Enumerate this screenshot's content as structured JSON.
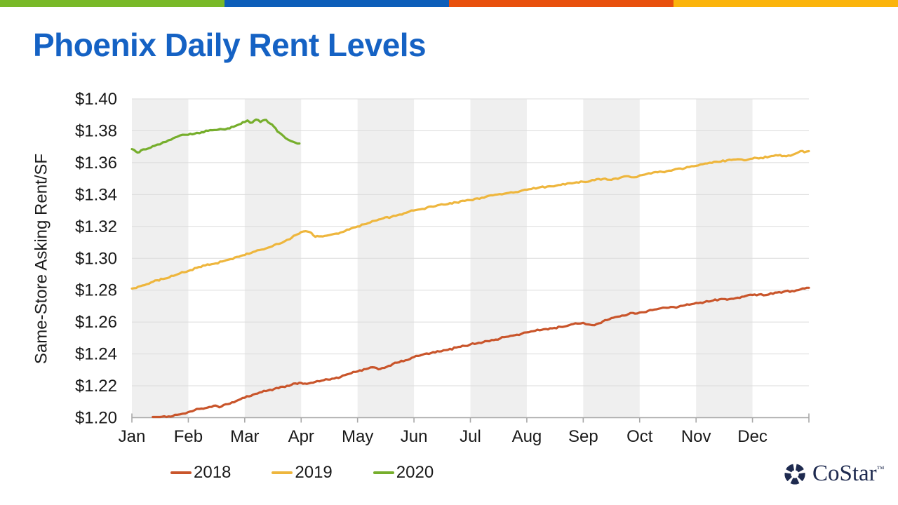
{
  "title": {
    "text": "Phoenix Daily Rent Levels",
    "color": "#1562C4"
  },
  "top_bar": {
    "segment_colors": [
      "#79B928",
      "#0D5EB9",
      "#E8500D",
      "#FBB40B"
    ],
    "segment_names": [
      "green",
      "blue",
      "orange",
      "yellow"
    ]
  },
  "chart_data": {
    "type": "line",
    "title": "",
    "xlabel": "",
    "ylabel": "Same-Store Asking Rent/SF",
    "ylim": [
      1.2,
      1.4
    ],
    "y_ticks": [
      {
        "value": 1.2,
        "label": "$1.20"
      },
      {
        "value": 1.22,
        "label": "$1.22"
      },
      {
        "value": 1.24,
        "label": "$1.24"
      },
      {
        "value": 1.26,
        "label": "$1.26"
      },
      {
        "value": 1.28,
        "label": "$1.28"
      },
      {
        "value": 1.3,
        "label": "$1.30"
      },
      {
        "value": 1.32,
        "label": "$1.32"
      },
      {
        "value": 1.34,
        "label": "$1.34"
      },
      {
        "value": 1.36,
        "label": "$1.36"
      },
      {
        "value": 1.38,
        "label": "$1.38"
      },
      {
        "value": 1.4,
        "label": "$1.40"
      }
    ],
    "x_ticks": [
      "Jan",
      "Feb",
      "Mar",
      "Apr",
      "May",
      "Jun",
      "Jul",
      "Aug",
      "Sep",
      "Oct",
      "Nov",
      "Dec"
    ],
    "x_encoding": "months elapsed since Jan 1 (0 = Jan 1, 12 = Dec 31)",
    "xlim": [
      0,
      12
    ],
    "grid": "horizontal",
    "shaded_month_bands": [
      "Jan",
      "Mar",
      "May",
      "Jul",
      "Sep",
      "Nov"
    ],
    "legend_position": "bottom-left",
    "noise_amplitude": 0.0005,
    "series": [
      {
        "name": "2018",
        "color": "#C9552B",
        "points": [
          [
            0.37,
            1.1995
          ],
          [
            0.5,
            1.2
          ],
          [
            0.65,
            1.2008
          ],
          [
            0.8,
            1.2018
          ],
          [
            0.9,
            1.2025
          ],
          [
            1.0,
            1.2035
          ],
          [
            1.1,
            1.2045
          ],
          [
            1.2,
            1.2055
          ],
          [
            1.3,
            1.206
          ],
          [
            1.45,
            1.2075
          ],
          [
            1.55,
            1.2065
          ],
          [
            1.7,
            1.2085
          ],
          [
            1.85,
            1.2105
          ],
          [
            2.0,
            1.2125
          ],
          [
            2.15,
            1.2145
          ],
          [
            2.3,
            1.216
          ],
          [
            2.45,
            1.2175
          ],
          [
            2.6,
            1.2185
          ],
          [
            2.75,
            1.22
          ],
          [
            2.9,
            1.2215
          ],
          [
            3.0,
            1.2218
          ],
          [
            3.1,
            1.2212
          ],
          [
            3.25,
            1.2225
          ],
          [
            3.4,
            1.2235
          ],
          [
            3.55,
            1.2245
          ],
          [
            3.7,
            1.2255
          ],
          [
            3.85,
            1.2275
          ],
          [
            4.0,
            1.229
          ],
          [
            4.15,
            1.2305
          ],
          [
            4.3,
            1.2315
          ],
          [
            4.4,
            1.2305
          ],
          [
            4.55,
            1.2325
          ],
          [
            4.7,
            1.2345
          ],
          [
            4.85,
            1.236
          ],
          [
            5.0,
            1.238
          ],
          [
            5.15,
            1.2395
          ],
          [
            5.3,
            1.2405
          ],
          [
            5.45,
            1.2415
          ],
          [
            5.6,
            1.2425
          ],
          [
            5.75,
            1.244
          ],
          [
            5.9,
            1.245
          ],
          [
            6.0,
            1.246
          ],
          [
            6.15,
            1.247
          ],
          [
            6.3,
            1.248
          ],
          [
            6.45,
            1.249
          ],
          [
            6.6,
            1.2505
          ],
          [
            6.75,
            1.2515
          ],
          [
            6.9,
            1.2525
          ],
          [
            7.0,
            1.2535
          ],
          [
            7.15,
            1.2545
          ],
          [
            7.3,
            1.2555
          ],
          [
            7.45,
            1.256
          ],
          [
            7.6,
            1.257
          ],
          [
            7.75,
            1.258
          ],
          [
            7.9,
            1.259
          ],
          [
            8.0,
            1.2595
          ],
          [
            8.1,
            1.2585
          ],
          [
            8.2,
            1.258
          ],
          [
            8.35,
            1.2605
          ],
          [
            8.5,
            1.2625
          ],
          [
            8.65,
            1.2635
          ],
          [
            8.8,
            1.265
          ],
          [
            9.0,
            1.266
          ],
          [
            9.15,
            1.267
          ],
          [
            9.3,
            1.268
          ],
          [
            9.45,
            1.269
          ],
          [
            9.55,
            1.2695
          ],
          [
            9.65,
            1.269
          ],
          [
            9.8,
            1.2705
          ],
          [
            10.0,
            1.272
          ],
          [
            10.15,
            1.2725
          ],
          [
            10.3,
            1.2735
          ],
          [
            10.45,
            1.2745
          ],
          [
            10.55,
            1.274
          ],
          [
            10.7,
            1.275
          ],
          [
            10.85,
            1.276
          ],
          [
            11.0,
            1.277
          ],
          [
            11.15,
            1.2775
          ],
          [
            11.25,
            1.277
          ],
          [
            11.4,
            1.2785
          ],
          [
            11.55,
            1.279
          ],
          [
            11.7,
            1.2795
          ],
          [
            11.85,
            1.2805
          ],
          [
            12.0,
            1.2815
          ]
        ]
      },
      {
        "name": "2019",
        "color": "#EEB63D",
        "points": [
          [
            0,
            1.281
          ],
          [
            0.15,
            1.2825
          ],
          [
            0.3,
            1.284
          ],
          [
            0.45,
            1.2862
          ],
          [
            0.55,
            1.287
          ],
          [
            0.7,
            1.289
          ],
          [
            0.85,
            1.2905
          ],
          [
            1.0,
            1.292
          ],
          [
            1.15,
            1.294
          ],
          [
            1.3,
            1.2955
          ],
          [
            1.45,
            1.2965
          ],
          [
            1.6,
            1.298
          ],
          [
            1.75,
            1.2995
          ],
          [
            1.9,
            1.301
          ],
          [
            2.0,
            1.302
          ],
          [
            2.15,
            1.304
          ],
          [
            2.3,
            1.3055
          ],
          [
            2.45,
            1.307
          ],
          [
            2.6,
            1.309
          ],
          [
            2.7,
            1.3105
          ],
          [
            2.8,
            1.312
          ],
          [
            2.9,
            1.3145
          ],
          [
            3.0,
            1.3165
          ],
          [
            3.08,
            1.317
          ],
          [
            3.15,
            1.3165
          ],
          [
            3.25,
            1.3135
          ],
          [
            3.35,
            1.3138
          ],
          [
            3.45,
            1.3142
          ],
          [
            3.55,
            1.315
          ],
          [
            3.7,
            1.3162
          ],
          [
            3.85,
            1.318
          ],
          [
            4.0,
            1.32
          ],
          [
            4.15,
            1.3215
          ],
          [
            4.3,
            1.3235
          ],
          [
            4.45,
            1.325
          ],
          [
            4.6,
            1.326
          ],
          [
            4.75,
            1.3275
          ],
          [
            4.9,
            1.329
          ],
          [
            5.0,
            1.33
          ],
          [
            5.15,
            1.331
          ],
          [
            5.3,
            1.3325
          ],
          [
            5.45,
            1.3335
          ],
          [
            5.6,
            1.334
          ],
          [
            5.75,
            1.335
          ],
          [
            5.9,
            1.336
          ],
          [
            6.0,
            1.3365
          ],
          [
            6.2,
            1.338
          ],
          [
            6.4,
            1.3395
          ],
          [
            6.6,
            1.3405
          ],
          [
            6.8,
            1.3415
          ],
          [
            7.0,
            1.343
          ],
          [
            7.2,
            1.3442
          ],
          [
            7.4,
            1.3452
          ],
          [
            7.6,
            1.346
          ],
          [
            7.8,
            1.347
          ],
          [
            8.0,
            1.348
          ],
          [
            8.2,
            1.349
          ],
          [
            8.35,
            1.3498
          ],
          [
            8.5,
            1.3492
          ],
          [
            8.65,
            1.3505
          ],
          [
            8.8,
            1.3515
          ],
          [
            8.9,
            1.3508
          ],
          [
            9.0,
            1.352
          ],
          [
            9.2,
            1.3532
          ],
          [
            9.4,
            1.3542
          ],
          [
            9.6,
            1.3555
          ],
          [
            9.8,
            1.3565
          ],
          [
            10.0,
            1.358
          ],
          [
            10.2,
            1.3595
          ],
          [
            10.4,
            1.3605
          ],
          [
            10.55,
            1.3615
          ],
          [
            10.7,
            1.362
          ],
          [
            10.85,
            1.3615
          ],
          [
            11.0,
            1.3625
          ],
          [
            11.15,
            1.363
          ],
          [
            11.3,
            1.3638
          ],
          [
            11.45,
            1.3645
          ],
          [
            11.6,
            1.364
          ],
          [
            11.75,
            1.3655
          ],
          [
            11.85,
            1.3672
          ],
          [
            11.92,
            1.3665
          ],
          [
            12.0,
            1.3672
          ]
        ]
      },
      {
        "name": "2020",
        "color": "#76AE2C",
        "points": [
          [
            0,
            1.3685
          ],
          [
            0.07,
            1.367
          ],
          [
            0.13,
            1.3665
          ],
          [
            0.2,
            1.3683
          ],
          [
            0.3,
            1.369
          ],
          [
            0.4,
            1.3705
          ],
          [
            0.5,
            1.3715
          ],
          [
            0.6,
            1.373
          ],
          [
            0.7,
            1.3745
          ],
          [
            0.8,
            1.3762
          ],
          [
            0.9,
            1.3775
          ],
          [
            1.0,
            1.3775
          ],
          [
            1.1,
            1.378
          ],
          [
            1.2,
            1.3785
          ],
          [
            1.35,
            1.38
          ],
          [
            1.5,
            1.3805
          ],
          [
            1.6,
            1.381
          ],
          [
            1.7,
            1.3815
          ],
          [
            1.8,
            1.3825
          ],
          [
            1.9,
            1.384
          ],
          [
            2.0,
            1.3855
          ],
          [
            2.05,
            1.3865
          ],
          [
            2.1,
            1.385
          ],
          [
            2.2,
            1.387
          ],
          [
            2.28,
            1.3855
          ],
          [
            2.38,
            1.3868
          ],
          [
            2.45,
            1.3845
          ],
          [
            2.52,
            1.3825
          ],
          [
            2.58,
            1.3795
          ],
          [
            2.65,
            1.3778
          ],
          [
            2.72,
            1.3755
          ],
          [
            2.82,
            1.3735
          ],
          [
            2.9,
            1.3725
          ],
          [
            2.97,
            1.372
          ]
        ]
      }
    ]
  },
  "legend": {
    "items": [
      "2018",
      "2019",
      "2020"
    ]
  },
  "logo": {
    "text": "CoStar",
    "tm_symbol": "™",
    "color": "#1E2A4F"
  }
}
